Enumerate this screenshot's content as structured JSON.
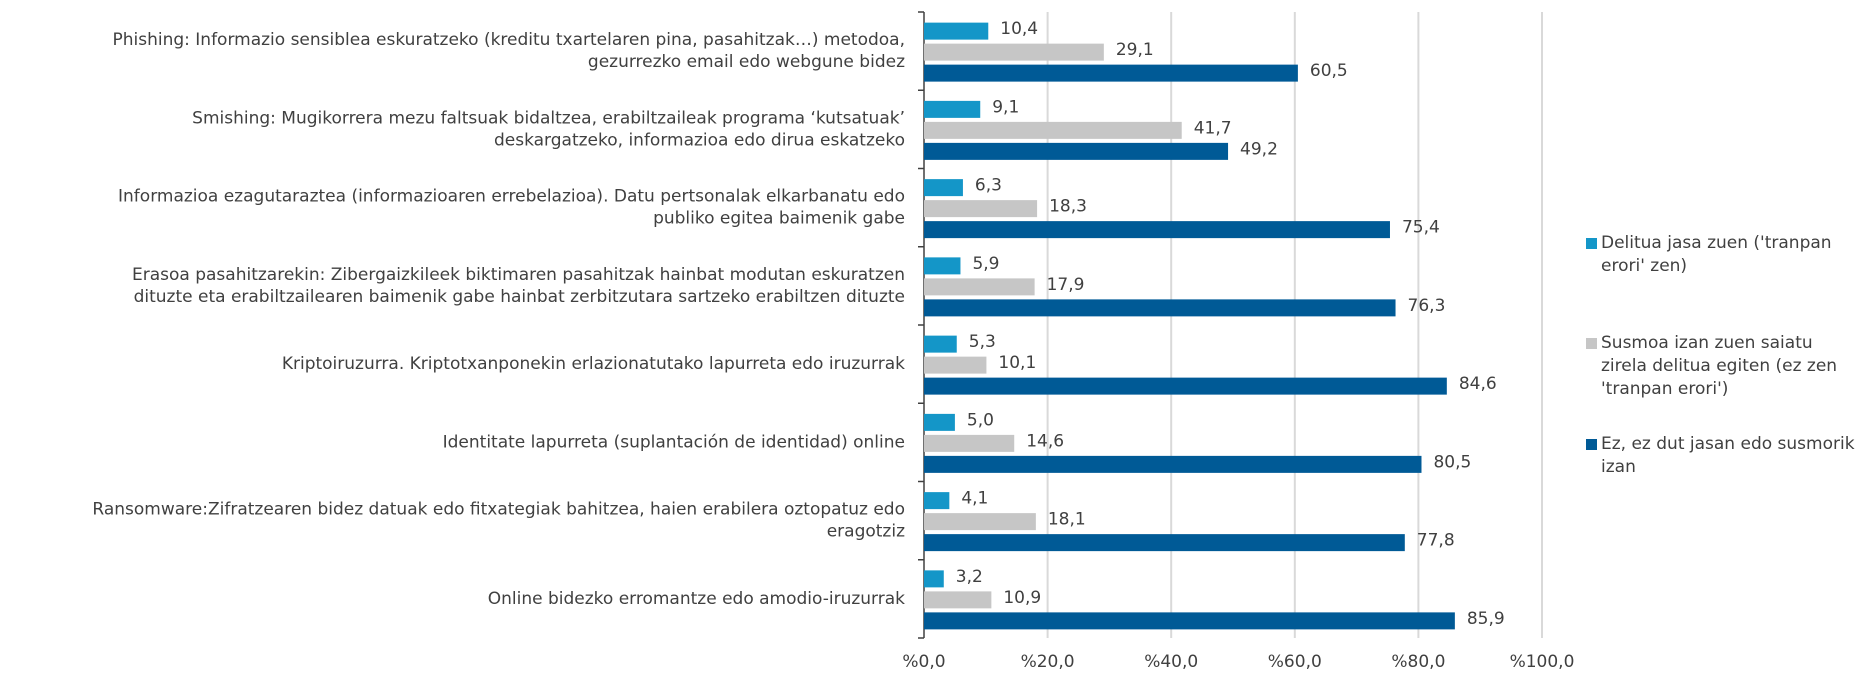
{
  "chart_data": {
    "type": "bar",
    "orientation": "horizontal",
    "categories": [
      [
        "Phishing: Informazio sensiblea eskuratzeko (kreditu txartelaren pina, pasahitzak…) metodoa,",
        "gezurrezko email edo webgune bidez"
      ],
      [
        "Smishing: Mugikorrera mezu faltsuak bidaltzea, erabiltzaileak programa ‘kutsatuak’",
        "deskargatzeko, informazioa edo dirua eskatzeko"
      ],
      [
        "Informazioa ezagutaraztea (informazioaren errebelazioa). Datu pertsonalak elkarbanatu edo",
        "publiko egitea baimenik gabe"
      ],
      [
        "Erasoa pasahitzarekin: Zibergaizkileek biktimaren pasahitzak hainbat modutan eskuratzen",
        "dituzte eta erabiltzailearen baimenik gabe hainbat zerbitzutara sartzeko erabiltzen dituzte"
      ],
      [
        "Kriptoiruzurra. Kriptotxanponekin erlazionatutako lapurreta edo iruzurrak"
      ],
      [
        "Identitate lapurreta (suplantación de identidad) online"
      ],
      [
        "Ransomware:Zifratzearen bidez datuak edo fitxategiak bahitzea, haien erabilera oztopatuz edo",
        "eragotziz"
      ],
      [
        "Online bidezko erromantze edo amodio-iruzurrak"
      ]
    ],
    "series": [
      {
        "name": "Delitua jasa zuen ('tranpan erori' zen)",
        "color": "#1496c8",
        "values": [
          10.4,
          9.1,
          6.3,
          5.9,
          5.3,
          5.0,
          4.1,
          3.2
        ],
        "value_labels": [
          "10,4",
          "9,1",
          "6,3",
          "5,9",
          "5,3",
          "5,0",
          "4,1",
          "3,2"
        ]
      },
      {
        "name": "Susmoa izan zuen saiatu zirela delitua egiten (ez zen 'tranpan erori')",
        "color": "#c6c6c6",
        "values": [
          29.1,
          41.7,
          18.3,
          17.9,
          10.1,
          14.6,
          18.1,
          10.9
        ],
        "value_labels": [
          "29,1",
          "41,7",
          "18,3",
          "17,9",
          "10,1",
          "14,6",
          "18,1",
          "10,9"
        ]
      },
      {
        "name": "Ez, ez dut jasan edo susmorik izan",
        "color": "#005a96",
        "values": [
          60.5,
          49.2,
          75.4,
          76.3,
          84.6,
          80.5,
          77.8,
          85.9
        ],
        "value_labels": [
          "60,5",
          "49,2",
          "75,4",
          "76,3",
          "84,6",
          "80,5",
          "77,8",
          "85,9"
        ]
      }
    ],
    "xlim": [
      0,
      100
    ],
    "xticks": [
      {
        "value": 0,
        "label": "%0,0"
      },
      {
        "value": 20,
        "label": "%20,0"
      },
      {
        "value": 40,
        "label": "%40,0"
      },
      {
        "value": 60,
        "label": "%60,0"
      },
      {
        "value": 80,
        "label": "%80,0"
      },
      {
        "value": 100,
        "label": "%100,0"
      }
    ],
    "grid": true,
    "legend": "right"
  }
}
